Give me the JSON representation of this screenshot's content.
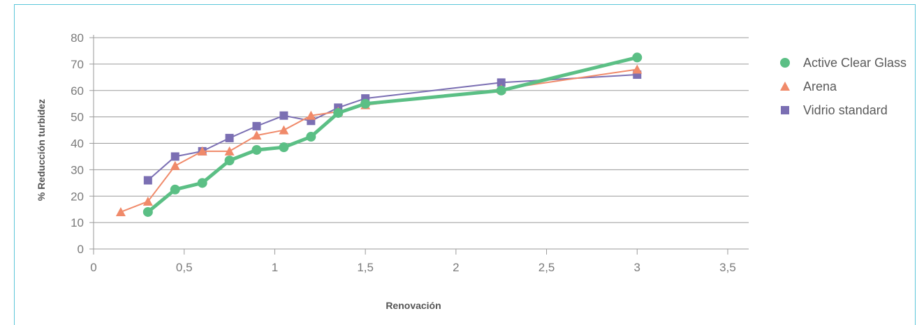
{
  "chart_data": {
    "type": "line",
    "xlabel": "Renovación",
    "ylabel": "% Reducción turbidez",
    "xlim": [
      0,
      3.5
    ],
    "ylim": [
      0,
      80
    ],
    "x_ticks": [
      {
        "value": 0,
        "label": "0"
      },
      {
        "value": 0.5,
        "label": "0,5"
      },
      {
        "value": 1,
        "label": "1"
      },
      {
        "value": 1.5,
        "label": "1,5"
      },
      {
        "value": 2,
        "label": "2"
      },
      {
        "value": 2.5,
        "label": "2,5"
      },
      {
        "value": 3,
        "label": "3"
      },
      {
        "value": 3.5,
        "label": "3,5"
      }
    ],
    "y_ticks": [
      0,
      10,
      20,
      30,
      40,
      50,
      60,
      70,
      80
    ],
    "grid": "horizontal",
    "legend_position": "right",
    "series": [
      {
        "name": "Active Clear Glass",
        "color": "#5bbf85",
        "marker": "circle",
        "points": [
          [
            0.3,
            14
          ],
          [
            0.45,
            22.5
          ],
          [
            0.6,
            25
          ],
          [
            0.75,
            33.5
          ],
          [
            0.9,
            37.5
          ],
          [
            1.05,
            38.5
          ],
          [
            1.2,
            42.5
          ],
          [
            1.35,
            51.5
          ],
          [
            1.5,
            55
          ],
          [
            2.25,
            60
          ],
          [
            3.0,
            72.5
          ]
        ]
      },
      {
        "name": "Arena",
        "color": "#f08a6a",
        "marker": "triangle",
        "points": [
          [
            0.15,
            14
          ],
          [
            0.3,
            18
          ],
          [
            0.45,
            31.5
          ],
          [
            0.6,
            37
          ],
          [
            0.75,
            37
          ],
          [
            0.9,
            43
          ],
          [
            1.05,
            45
          ],
          [
            1.2,
            50.5
          ],
          [
            1.35,
            52
          ],
          [
            1.5,
            54.5
          ],
          [
            2.25,
            60.5
          ],
          [
            3.0,
            68
          ]
        ]
      },
      {
        "name": "Vidrio standard",
        "color": "#7b6fb3",
        "marker": "square",
        "points": [
          [
            0.3,
            26
          ],
          [
            0.45,
            35
          ],
          [
            0.6,
            37
          ],
          [
            0.75,
            42
          ],
          [
            0.9,
            46.5
          ],
          [
            1.05,
            50.5
          ],
          [
            1.2,
            48.5
          ],
          [
            1.35,
            53.5
          ],
          [
            1.5,
            57
          ],
          [
            2.25,
            63
          ],
          [
            3.0,
            66
          ]
        ]
      }
    ]
  }
}
